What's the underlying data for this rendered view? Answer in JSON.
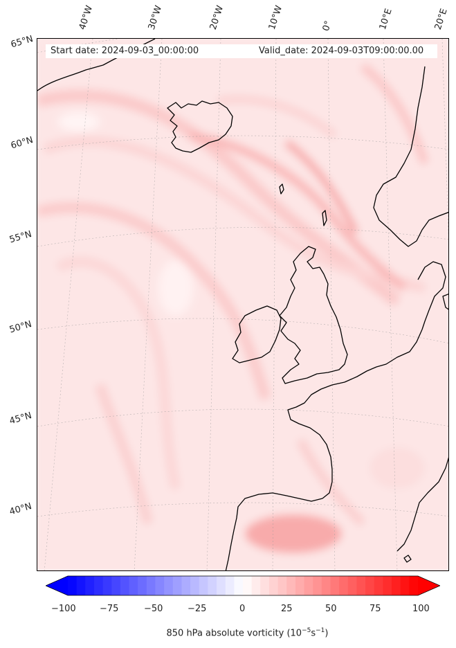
{
  "header": {
    "start_date": "Start date: 2024-09-03_00:00:00",
    "valid_date": "Valid_date: 2024-09-03T09:00:00.00"
  },
  "map": {
    "lon_labels": [
      "40°W",
      "30°W",
      "20°W",
      "10°W",
      "0°",
      "10°E",
      "20°E"
    ],
    "lat_labels": [
      "65°N",
      "60°N",
      "55°N",
      "50°N",
      "45°N",
      "40°N"
    ],
    "ocean_color": "#fde9e9",
    "land_outline_color": "#000000"
  },
  "colorbar": {
    "vmin": -100,
    "vmax": 100,
    "ticks": [
      "−100",
      "−75",
      "−50",
      "−25",
      "0",
      "25",
      "50",
      "75",
      "100"
    ],
    "title": "850 hPa absolute vorticity (10",
    "title_exp1": "−5",
    "title_mid": "s",
    "title_exp2": "−1",
    "title_end": ")",
    "low_color": "#0000ff",
    "mid_color": "#ffffff",
    "high_color": "#ff0000"
  }
}
